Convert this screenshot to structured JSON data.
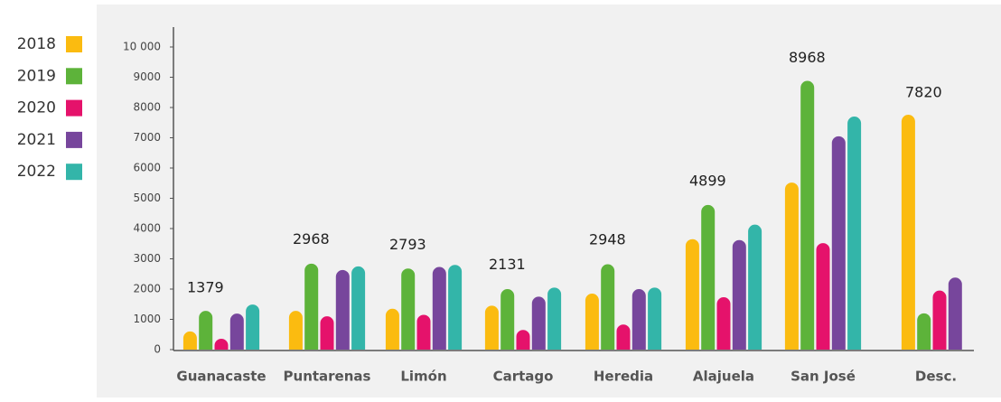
{
  "chart_data": {
    "type": "bar",
    "categories": [
      "Guanacaste",
      "Puntarenas",
      "Limón",
      "Cartago",
      "Heredia",
      "Alajuela",
      "San José",
      "Desc."
    ],
    "series": [
      {
        "name": "2018",
        "color": "#fbbb10",
        "values": [
          600,
          1280,
          1350,
          1450,
          1850,
          3650,
          5520,
          7760
        ]
      },
      {
        "name": "2019",
        "color": "#5db33a",
        "values": [
          1280,
          2840,
          2680,
          2000,
          2820,
          4780,
          8880,
          1200
        ]
      },
      {
        "name": "2020",
        "color": "#e5126b",
        "values": [
          360,
          1100,
          1150,
          650,
          830,
          1730,
          3520,
          1950
        ]
      },
      {
        "name": "2021",
        "color": "#77469c",
        "values": [
          1190,
          2630,
          2730,
          1750,
          2000,
          3620,
          7050,
          2380
        ]
      },
      {
        "name": "2022",
        "color": "#33b5a9",
        "values": [
          1490,
          2750,
          2800,
          2050,
          2050,
          4130,
          7700,
          null
        ]
      }
    ],
    "annotations": [
      1379,
      2968,
      2793,
      2131,
      2948,
      4899,
      8968,
      7820
    ],
    "ylim": [
      0,
      10000
    ],
    "yticks": [
      0,
      1000,
      2000,
      3000,
      4000,
      5000,
      6000,
      7000,
      8000,
      9000,
      {
        "value": 10000,
        "label": "10 000"
      }
    ],
    "legend": "left"
  }
}
